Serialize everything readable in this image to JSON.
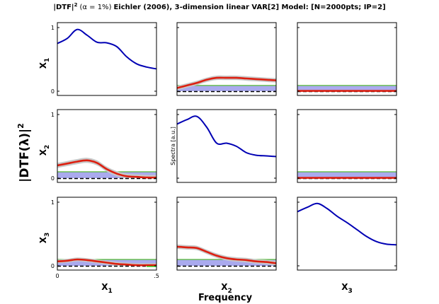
{
  "title": {
    "prefix": "|DTF|",
    "power": "2",
    "alpha": "(α = 1%)",
    "rest": "Eichler (2006), 3-dimension linear VAR[2] Model: [N=2000pts; IP=2]"
  },
  "ylabel": {
    "text": "|DTF(λ)|",
    "power": "2"
  },
  "xlabel": "Frequency",
  "spectra_label": "Spectra [a.u.]",
  "channels": [
    {
      "base": "X",
      "sub": "1"
    },
    {
      "base": "X",
      "sub": "2"
    },
    {
      "base": "X",
      "sub": "3"
    }
  ],
  "colors": {
    "spectrum": "#0000b4",
    "dtf": "#dd1f10",
    "ci_band": "#c8c8c8",
    "threshold_fill": "#aaaaee",
    "threshold_line": "#55bb33",
    "zero_line": "#000000",
    "significant": "#00dd00",
    "axes": "#000000"
  },
  "chart_data": {
    "type": "line",
    "layout": "3x3 matrix (row = target channel, column = source channel)",
    "ylim": [
      0,
      1
    ],
    "xlim": [
      0,
      0.5
    ],
    "yticks": [
      "0",
      "1"
    ],
    "xticks": [
      "0",
      ".5"
    ],
    "grid": false,
    "x": [
      0,
      0.05,
      0.1,
      0.15,
      0.2,
      0.25,
      0.3,
      0.35,
      0.4,
      0.45,
      0.5
    ],
    "panels": [
      {
        "row": 1,
        "col": 1,
        "kind": "spectrum",
        "values": [
          0.75,
          0.83,
          0.97,
          0.88,
          0.77,
          0.76,
          0.7,
          0.54,
          0.43,
          0.38,
          0.35
        ]
      },
      {
        "row": 1,
        "col": 2,
        "kind": "dtf",
        "values": [
          0.05,
          0.09,
          0.13,
          0.18,
          0.21,
          0.21,
          0.21,
          0.2,
          0.19,
          0.18,
          0.17
        ],
        "ci_halfwidth": 0.035,
        "threshold": 0.09
      },
      {
        "row": 1,
        "col": 3,
        "kind": "dtf",
        "values": [
          0.005,
          0.005,
          0.005,
          0.005,
          0.005,
          0.005,
          0.005,
          0.005,
          0.005,
          0.005,
          0.005
        ],
        "ci_halfwidth": 0.005,
        "threshold": 0.09
      },
      {
        "row": 2,
        "col": 1,
        "kind": "dtf",
        "values": [
          0.2,
          0.23,
          0.26,
          0.28,
          0.24,
          0.14,
          0.07,
          0.03,
          0.02,
          0.01,
          0.01
        ],
        "ci_halfwidth": 0.04,
        "threshold": 0.1
      },
      {
        "row": 2,
        "col": 2,
        "kind": "spectrum",
        "values": [
          0.85,
          0.92,
          0.97,
          0.8,
          0.55,
          0.55,
          0.5,
          0.4,
          0.36,
          0.35,
          0.34
        ]
      },
      {
        "row": 2,
        "col": 3,
        "kind": "dtf",
        "values": [
          0.005,
          0.005,
          0.005,
          0.005,
          0.005,
          0.005,
          0.005,
          0.005,
          0.005,
          0.005,
          0.005
        ],
        "ci_halfwidth": 0.005,
        "threshold": 0.1
      },
      {
        "row": 3,
        "col": 1,
        "kind": "dtf",
        "values": [
          0.07,
          0.08,
          0.1,
          0.09,
          0.07,
          0.05,
          0.03,
          0.02,
          0.01,
          0.01,
          0.01
        ],
        "ci_halfwidth": 0.03,
        "threshold": 0.1,
        "significant_segments": [
          [
            0.45,
            0.5
          ]
        ]
      },
      {
        "row": 3,
        "col": 2,
        "kind": "dtf",
        "values": [
          0.3,
          0.29,
          0.28,
          0.22,
          0.16,
          0.12,
          0.1,
          0.09,
          0.07,
          0.06,
          0.04
        ],
        "ci_halfwidth": 0.035,
        "threshold": 0.1
      },
      {
        "row": 3,
        "col": 3,
        "kind": "spectrum",
        "values": [
          0.85,
          0.92,
          0.98,
          0.9,
          0.78,
          0.68,
          0.57,
          0.46,
          0.38,
          0.34,
          0.33
        ]
      }
    ]
  }
}
